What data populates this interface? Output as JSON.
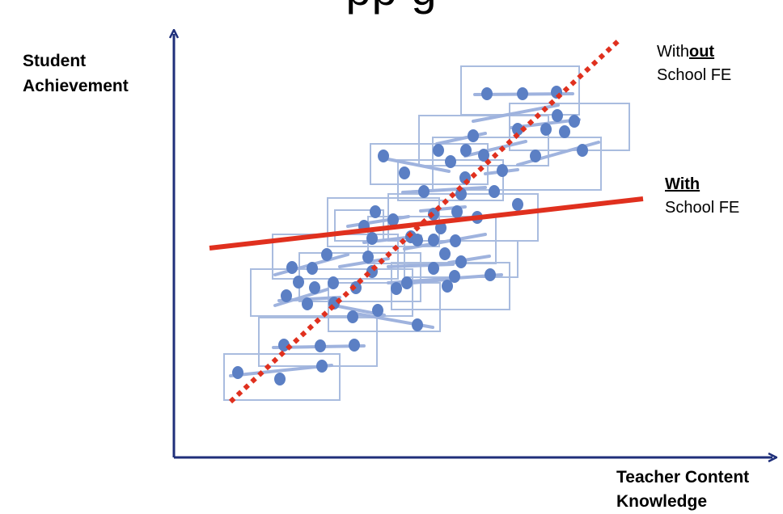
{
  "title_fragment": "pp g",
  "y_axis_label": [
    "Student",
    "Achievement"
  ],
  "x_axis_label": [
    "Teacher Content",
    "Knowledge"
  ],
  "without_label": {
    "prefix": "With",
    "emph": "out",
    "line2": "School FE"
  },
  "with_label": {
    "emph": "With",
    "line2": "School FE"
  },
  "colors": {
    "axis": "#1f2f7a",
    "point": "#5b7fc4",
    "within_line": "#9fb3de",
    "school_box": "#a9bcdf",
    "with_fe_line": "#e0301e",
    "without_fe_line": "#e0301e"
  }
}
